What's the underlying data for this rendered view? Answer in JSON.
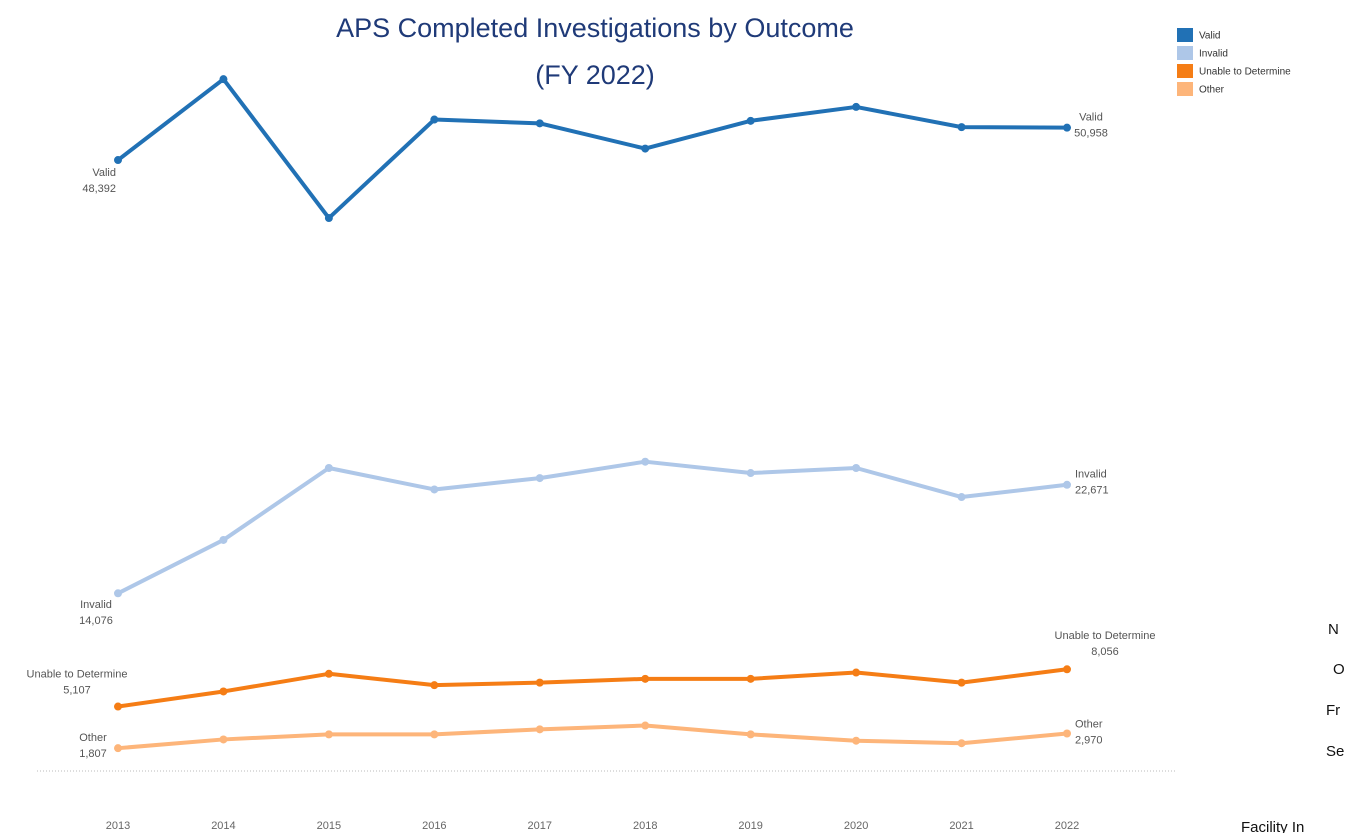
{
  "chart_data": {
    "type": "line",
    "title": "APS Completed Investigations by Outcome",
    "subtitle": "(FY 2022)",
    "categories": [
      "2013",
      "2014",
      "2015",
      "2016",
      "2017",
      "2018",
      "2019",
      "2020",
      "2021",
      "2022"
    ],
    "ylim": [
      0,
      56000
    ],
    "legend": "top-right",
    "series": [
      {
        "name": "Valid",
        "color": "#2171b5",
        "values": [
          48392,
          54800,
          43800,
          51600,
          51300,
          49300,
          51500,
          52600,
          51000,
          50958
        ],
        "value_labels": [
          "48,392",
          null,
          null,
          null,
          null,
          null,
          null,
          null,
          null,
          "50,958"
        ]
      },
      {
        "name": "Invalid",
        "color": "#aec7e8",
        "values": [
          14076,
          18300,
          24000,
          22300,
          23200,
          24500,
          23600,
          24000,
          21700,
          22671
        ],
        "value_labels": [
          "14,076",
          null,
          null,
          null,
          null,
          null,
          null,
          null,
          null,
          "22,671"
        ]
      },
      {
        "name": "Unable to Determine",
        "color": "#f57d15",
        "values": [
          5107,
          6300,
          7700,
          6800,
          7000,
          7300,
          7300,
          7800,
          7000,
          8056
        ],
        "value_labels": [
          "5,107",
          null,
          null,
          null,
          null,
          null,
          null,
          null,
          null,
          "8,056"
        ]
      },
      {
        "name": "Other",
        "color": "#fdb57a",
        "values": [
          1807,
          2500,
          2900,
          2900,
          3300,
          3600,
          2900,
          2400,
          2200,
          2970
        ],
        "value_labels": [
          "1,807",
          null,
          null,
          null,
          null,
          null,
          null,
          null,
          null,
          "2,970"
        ]
      }
    ]
  },
  "side_labels": [
    "N",
    "O",
    "Fr",
    "Se",
    "Facility In"
  ]
}
